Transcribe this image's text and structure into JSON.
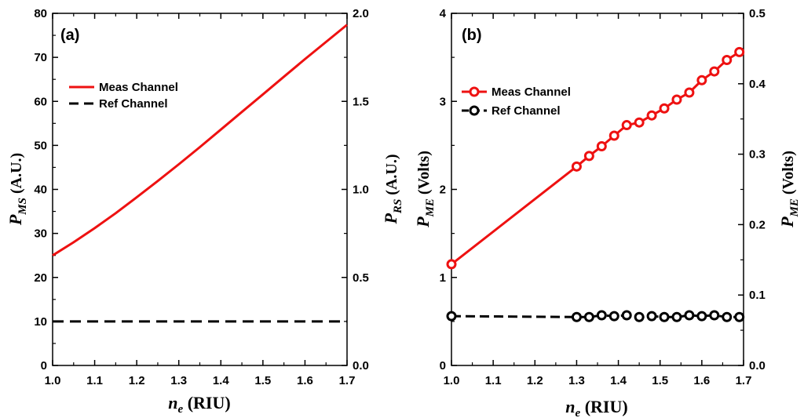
{
  "colors": {
    "meas": "#ee1111",
    "ref": "#000000",
    "axis": "#000000",
    "background": "#ffffff"
  },
  "chart_data": [
    {
      "panel_label": "(a)",
      "type": "line",
      "xlabel_main": "n",
      "xlabel_sub": "e",
      "xlabel_rest": " (RIU)",
      "ylabel_left_main": "P",
      "ylabel_left_sub": "MS",
      "ylabel_left_rest": " (A.U.)",
      "ylabel_right_main": "P",
      "ylabel_right_sub": "RS",
      "ylabel_right_rest": " (A.U.)",
      "xlim": [
        1.0,
        1.7
      ],
      "ylim_left": [
        0,
        80
      ],
      "ylim_right": [
        0.0,
        2.0
      ],
      "xticks": [
        "1.0",
        "1.1",
        "1.2",
        "1.3",
        "1.4",
        "1.5",
        "1.6",
        "1.7"
      ],
      "yticks_left": [
        "0",
        "10",
        "20",
        "30",
        "40",
        "50",
        "60",
        "70",
        "80"
      ],
      "yticks_right": [
        "0.0",
        "0.5",
        "1.0",
        "1.5",
        "2.0"
      ],
      "legend": [
        "Meas Channel",
        "Ref Channel"
      ],
      "legend_position": "upper-left",
      "series": [
        {
          "name": "Meas Channel",
          "style": "solid",
          "axis": "left",
          "x": [
            1.0,
            1.05,
            1.1,
            1.15,
            1.2,
            1.25,
            1.3,
            1.35,
            1.4,
            1.45,
            1.5,
            1.55,
            1.6,
            1.65,
            1.7
          ],
          "y": [
            25.0,
            28.0,
            31.2,
            34.6,
            38.2,
            41.9,
            45.7,
            49.6,
            53.6,
            57.6,
            61.6,
            65.6,
            69.6,
            73.5,
            77.4
          ]
        },
        {
          "name": "Ref Channel",
          "style": "dashed",
          "axis": "left",
          "x": [
            1.0,
            1.7
          ],
          "y": [
            10.0,
            10.0
          ]
        }
      ]
    },
    {
      "panel_label": "(b)",
      "type": "line",
      "xlabel_main": "n",
      "xlabel_sub": "e",
      "xlabel_rest": " (RIU)",
      "ylabel_left_main": "P",
      "ylabel_left_sub": "ME",
      "ylabel_left_rest": " (Volts)",
      "ylabel_right_main": "P",
      "ylabel_right_sub": "ME",
      "ylabel_right_rest": " (Volts)",
      "xlim": [
        1.0,
        1.7
      ],
      "ylim_left": [
        0,
        4
      ],
      "ylim_right": [
        0.0,
        0.5
      ],
      "xticks": [
        "1.0",
        "1.1",
        "1.2",
        "1.3",
        "1.4",
        "1.5",
        "1.6",
        "1.7"
      ],
      "yticks_left": [
        "0",
        "1",
        "2",
        "3",
        "4"
      ],
      "yticks_right": [
        "0.0",
        "0.1",
        "0.2",
        "0.3",
        "0.4",
        "0.5"
      ],
      "legend": [
        "Meas Channel",
        "Ref Channel"
      ],
      "legend_position": "upper-left",
      "series": [
        {
          "name": "Meas Channel",
          "style": "solid-circle",
          "axis": "left",
          "x": [
            1.0,
            1.3,
            1.33,
            1.36,
            1.39,
            1.42,
            1.45,
            1.48,
            1.51,
            1.54,
            1.57,
            1.6,
            1.63,
            1.66,
            1.69
          ],
          "y": [
            1.15,
            2.26,
            2.38,
            2.49,
            2.61,
            2.73,
            2.76,
            2.84,
            2.92,
            3.02,
            3.1,
            3.24,
            3.34,
            3.47,
            3.56
          ]
        },
        {
          "name": "Ref Channel",
          "style": "dashed-circle",
          "axis": "left",
          "x": [
            1.0,
            1.3,
            1.33,
            1.36,
            1.39,
            1.42,
            1.45,
            1.48,
            1.51,
            1.54,
            1.57,
            1.6,
            1.63,
            1.66,
            1.69
          ],
          "y": [
            0.56,
            0.55,
            0.55,
            0.57,
            0.56,
            0.57,
            0.55,
            0.56,
            0.55,
            0.55,
            0.57,
            0.56,
            0.57,
            0.55,
            0.55
          ]
        }
      ]
    }
  ]
}
